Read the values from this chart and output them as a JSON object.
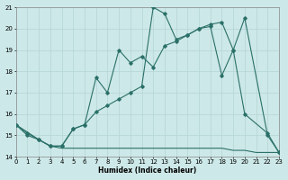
{
  "xlabel": "Humidex (Indice chaleur)",
  "xlim": [
    0,
    23
  ],
  "ylim": [
    14,
    21
  ],
  "xticks": [
    0,
    1,
    2,
    3,
    4,
    5,
    6,
    7,
    8,
    9,
    10,
    11,
    12,
    13,
    14,
    15,
    16,
    17,
    18,
    19,
    20,
    21,
    22,
    23
  ],
  "yticks": [
    14,
    15,
    16,
    17,
    18,
    19,
    20,
    21
  ],
  "bg_color": "#cde8e8",
  "line_color": "#2a7068",
  "grid_color": "#b8d8d8",
  "lines": [
    {
      "x": [
        0,
        1,
        2,
        3,
        4,
        5,
        6,
        7,
        8,
        9,
        10,
        11,
        12,
        13,
        14,
        15,
        16,
        17,
        18,
        19,
        20,
        22,
        23
      ],
      "y": [
        15.5,
        15.0,
        14.8,
        14.5,
        14.5,
        15.3,
        15.5,
        17.7,
        17.0,
        19.0,
        18.4,
        18.7,
        18.2,
        19.2,
        19.4,
        19.7,
        20.0,
        20.1,
        17.8,
        19.0,
        16.0,
        15.1,
        14.2
      ],
      "has_markers": true
    },
    {
      "x": [
        0,
        1,
        2,
        3,
        4,
        5,
        6,
        7,
        8,
        9,
        10,
        11,
        12,
        13,
        14,
        15,
        16,
        17,
        18,
        19,
        20,
        22,
        23
      ],
      "y": [
        15.5,
        15.1,
        14.8,
        14.5,
        14.5,
        15.3,
        15.5,
        16.1,
        16.4,
        16.7,
        17.0,
        17.3,
        21.0,
        20.7,
        19.5,
        19.7,
        20.0,
        20.2,
        20.3,
        19.0,
        20.5,
        15.0,
        14.2
      ],
      "has_markers": true
    },
    {
      "x": [
        0,
        2,
        3,
        4,
        5,
        6,
        7,
        8,
        9,
        10,
        11,
        12,
        13,
        14,
        15,
        16,
        17,
        18,
        19,
        20,
        21,
        22,
        23
      ],
      "y": [
        15.5,
        14.8,
        14.5,
        14.4,
        14.4,
        14.4,
        14.4,
        14.4,
        14.4,
        14.4,
        14.4,
        14.4,
        14.4,
        14.4,
        14.4,
        14.4,
        14.4,
        14.4,
        14.3,
        14.3,
        14.2,
        14.2,
        14.2
      ],
      "has_markers": false
    }
  ]
}
